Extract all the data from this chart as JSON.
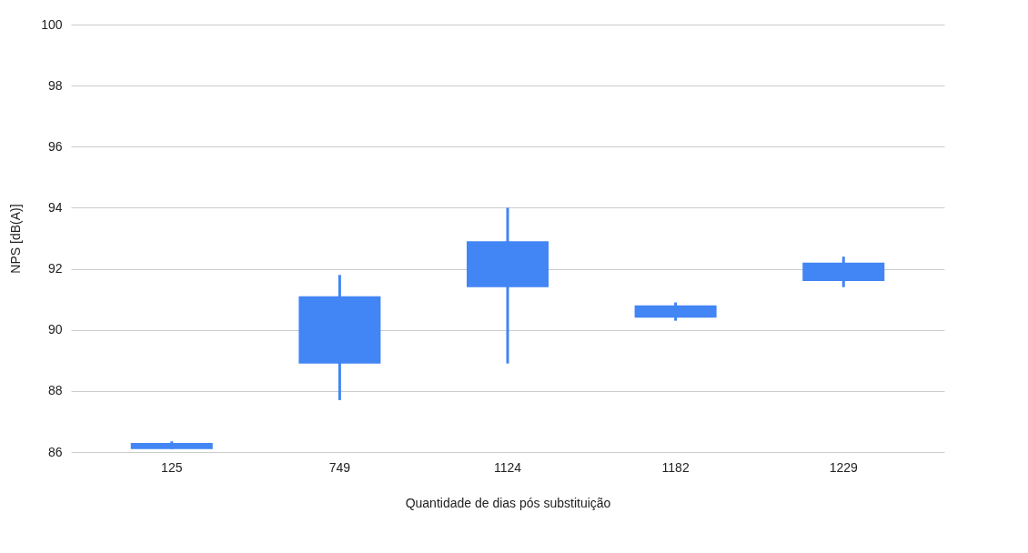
{
  "chart_data": {
    "type": "candlestick",
    "xlabel": "Quantidade de dias pós substituição",
    "ylabel": "NPS [dB(A)]",
    "categories": [
      "125",
      "749",
      "1124",
      "1182",
      "1229"
    ],
    "ohlc": [
      [
        86.3,
        86.35,
        86.1,
        86.1
      ],
      [
        91.1,
        91.8,
        87.7,
        88.9
      ],
      [
        92.9,
        94.0,
        88.9,
        91.4
      ],
      [
        90.8,
        90.9,
        90.3,
        90.4
      ],
      [
        92.2,
        92.4,
        91.4,
        91.6
      ]
    ],
    "color": "#4285f4",
    "ylim": [
      86,
      100
    ],
    "yticks": [
      86,
      88,
      90,
      92,
      94,
      96,
      98,
      100
    ],
    "grid": "y"
  }
}
